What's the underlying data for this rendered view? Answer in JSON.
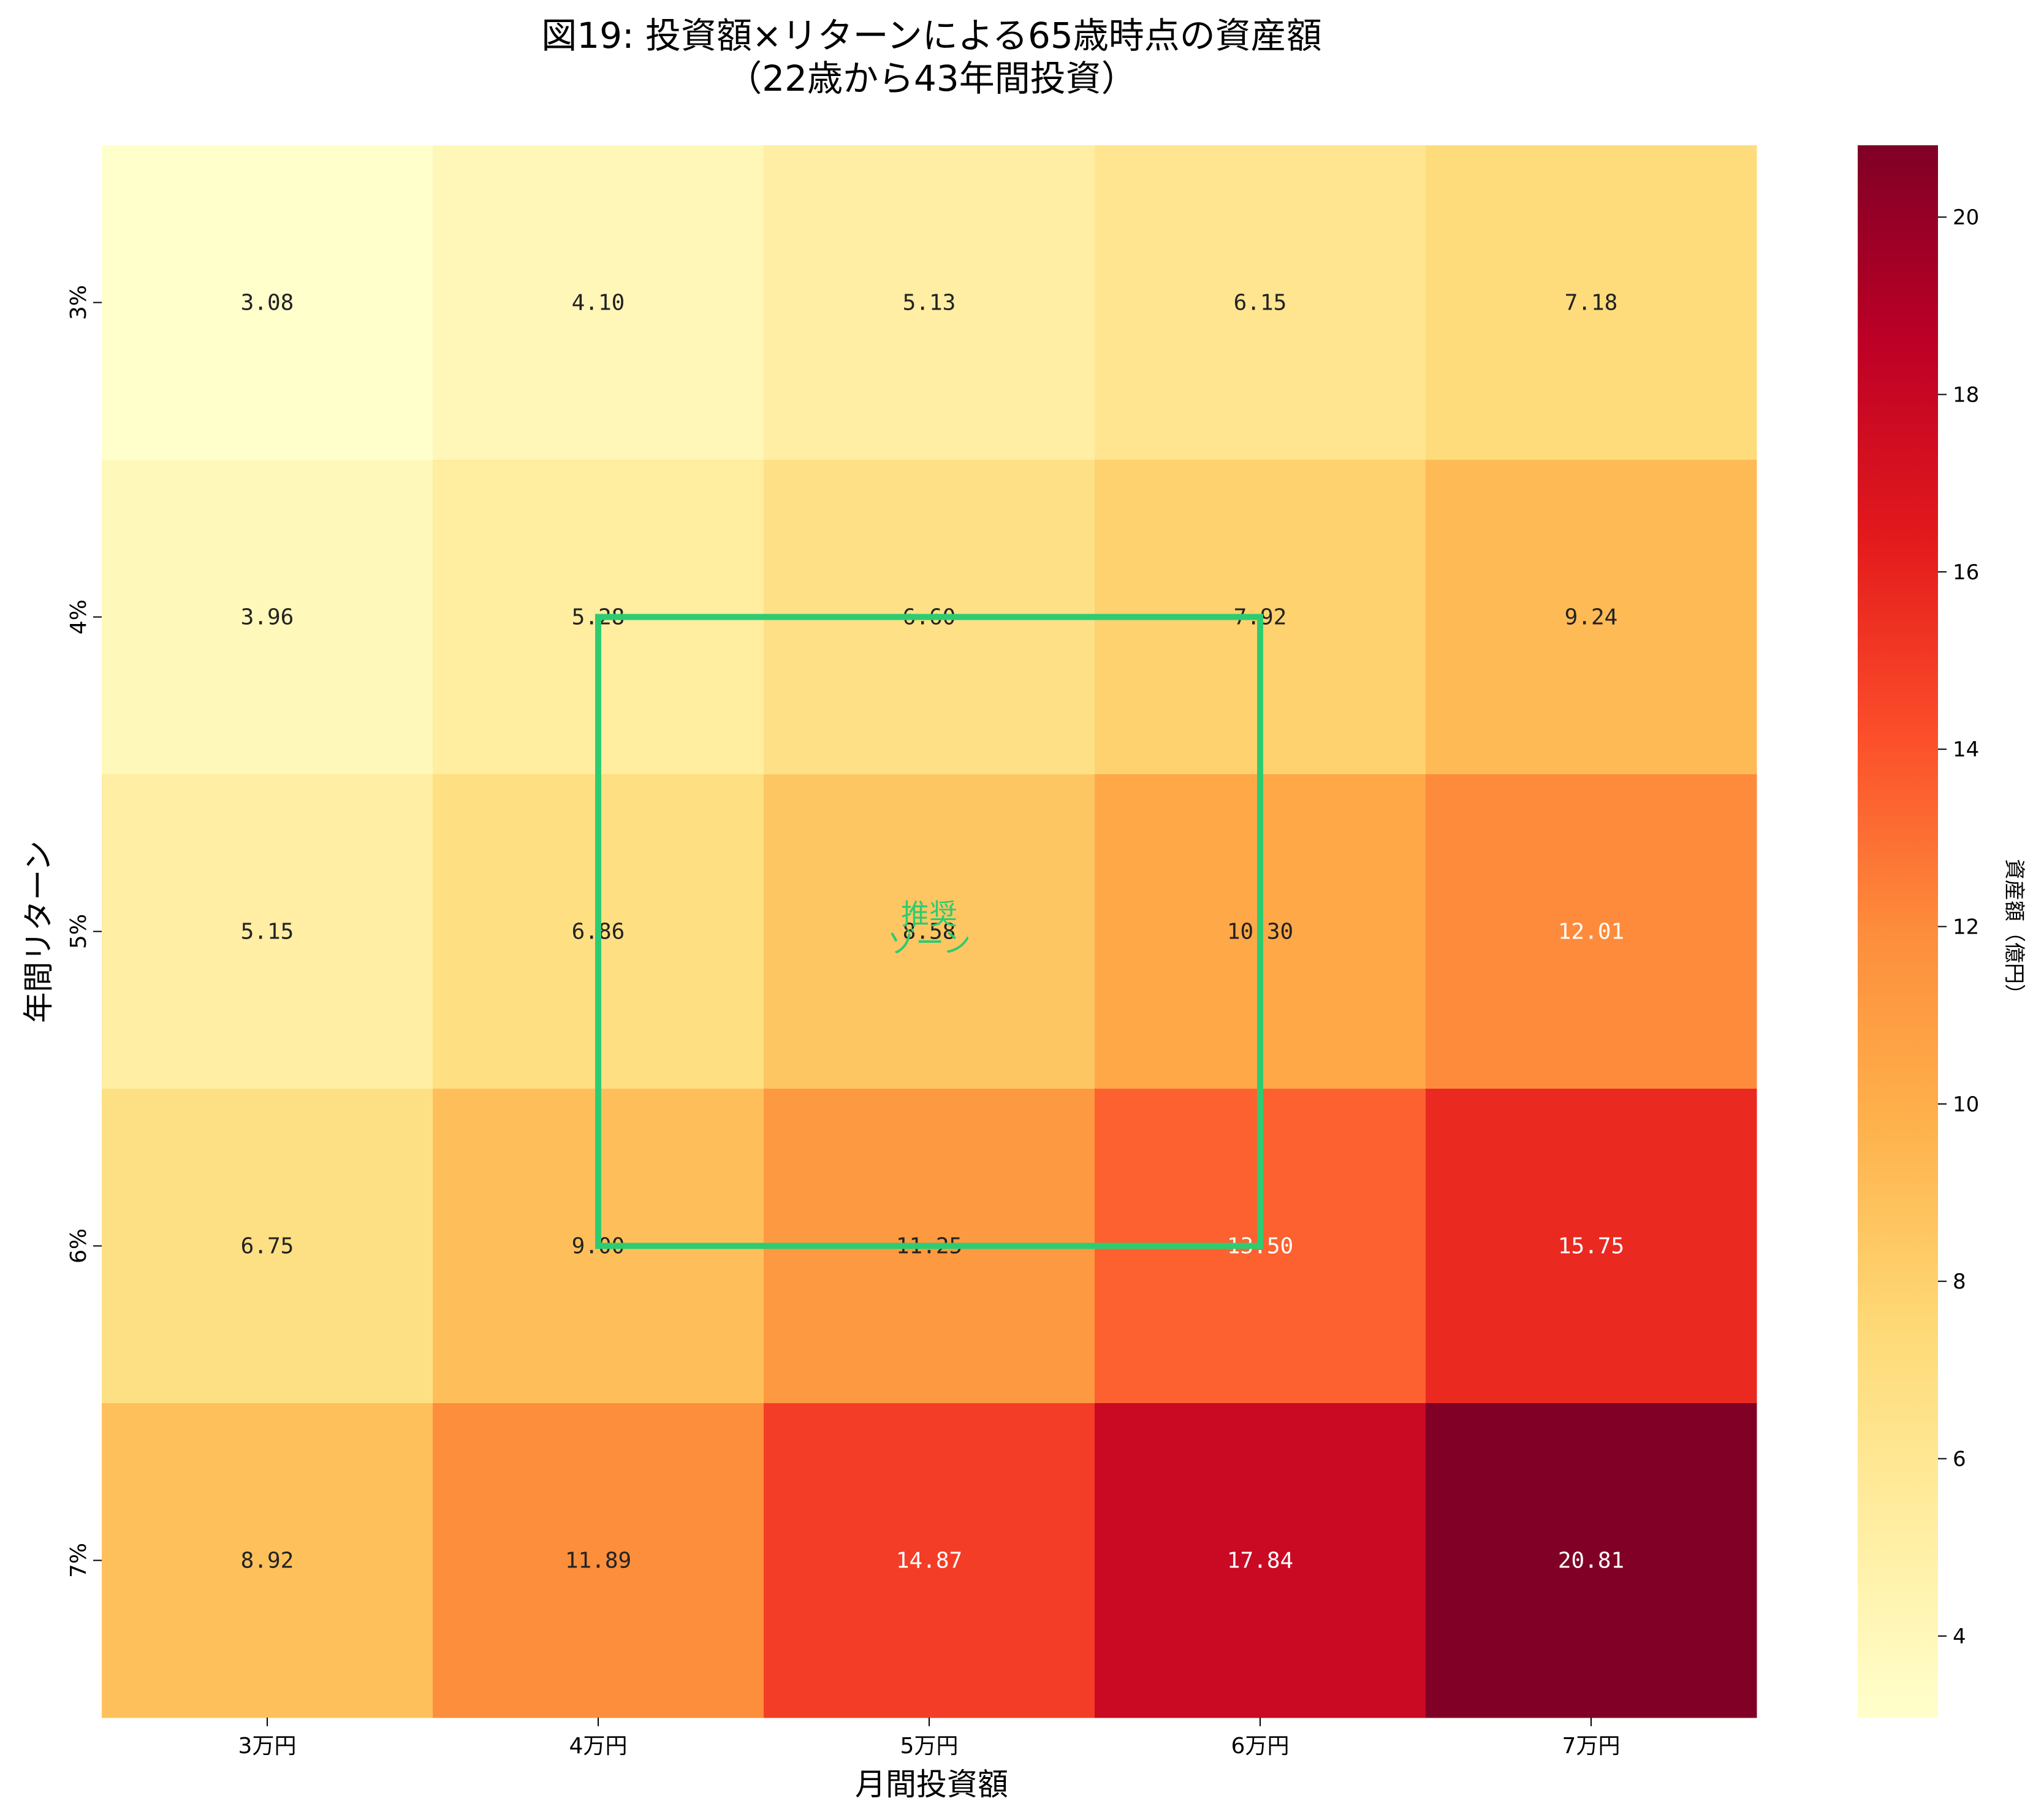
{
  "chart_data": {
    "type": "heatmap",
    "title": "図19: 投資額×リターンによる65歳時点の資産額",
    "subtitle": "（22歳から43年間投資）",
    "xlabel": "月間投資額",
    "ylabel": "年間リターン",
    "x_categories": [
      "3万円",
      "4万円",
      "5万円",
      "6万円",
      "7万円"
    ],
    "y_categories": [
      "3%",
      "4%",
      "5%",
      "6%",
      "7%"
    ],
    "values": [
      [
        3.08,
        4.1,
        5.13,
        6.15,
        7.18
      ],
      [
        3.96,
        5.28,
        6.6,
        7.92,
        9.24
      ],
      [
        5.15,
        6.86,
        8.58,
        10.3,
        12.01
      ],
      [
        6.75,
        9.0,
        11.25,
        13.5,
        15.75
      ],
      [
        8.92,
        11.89,
        14.87,
        17.84,
        20.81
      ]
    ],
    "cell_labels": [
      [
        "3.08",
        "4.10",
        "5.13",
        "6.15",
        "7.18"
      ],
      [
        "3.96",
        "5.28",
        "6.60",
        "7.92",
        "9.24"
      ],
      [
        "5.15",
        "6.86",
        "8.58",
        "10.30",
        "12.01"
      ],
      [
        "6.75",
        "9.00",
        "11.25",
        "13.50",
        "15.75"
      ],
      [
        "8.92",
        "11.89",
        "14.87",
        "17.84",
        "20.81"
      ]
    ],
    "colormap": "YlOrRd",
    "colorbar": {
      "label": "資産額（億円）",
      "range": [
        3.08,
        20.81
      ],
      "ticks": [
        4,
        6,
        8,
        10,
        12,
        14,
        16,
        18,
        20
      ],
      "tick_labels": [
        "4",
        "6",
        "8",
        "10",
        "12",
        "14",
        "16",
        "18",
        "20"
      ]
    },
    "highlight": {
      "label_line1": "推奨",
      "label_line2": "ゾーン",
      "color": "#2ecc71",
      "from_cell": {
        "x": "4万円",
        "y": "4%"
      },
      "to_cell": {
        "x": "6万円",
        "y": "6%"
      }
    }
  }
}
